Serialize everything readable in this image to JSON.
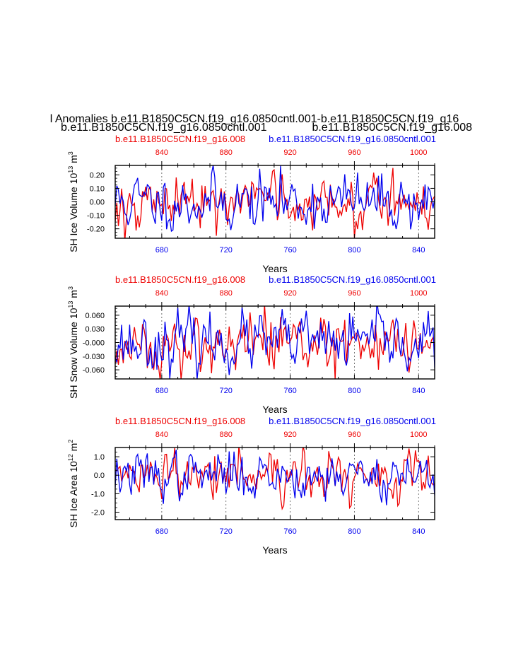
{
  "header": {
    "main_title": "l Anomalies b.e11.B1850C5CN.f19_g16.0850cntl.001-b.e11.B1850C5CN.f19_g16",
    "case_left": "b.e11.B1850C5CN.f19_g16.0850cntl.001",
    "case_right": "b.e11.B1850C5CN.f19_g16.008"
  },
  "colors": {
    "blue": "#0000ee",
    "red": "#ee0000",
    "black": "#000000"
  },
  "chart_data": [
    {
      "type": "line",
      "ylabel": "SH Ice Volume 10",
      "ylabel_exp": "13",
      "ylabel_unit": " m",
      "ylabel_unit_exp": "3",
      "xlabel": "Years",
      "top_left_label": "b.e11.B1850C5CN.f19_g16.008",
      "top_right_label": "b.e11.B1850C5CN.f19_g16.0850cntl.001",
      "ylim": [
        -0.27,
        0.27
      ],
      "yticks": [
        -0.2,
        -0.1,
        0.0,
        0.1,
        0.2
      ],
      "ytick_labels": [
        "-0.20",
        "-0.10",
        "0.00",
        "0.10",
        "0.20"
      ],
      "x_blue_range": [
        651,
        850
      ],
      "blue_ticks": [
        680,
        720,
        760,
        800,
        840
      ],
      "red_ticks": [
        840,
        880,
        920,
        960,
        1000
      ],
      "blue_amp": 0.1,
      "red_amp": 0.1,
      "seed": 11
    },
    {
      "type": "line",
      "ylabel": "SH Snow Volume 10",
      "ylabel_exp": "13",
      "ylabel_unit": " m",
      "ylabel_unit_exp": "3",
      "xlabel": "Years",
      "top_left_label": "b.e11.B1850C5CN.f19_g16.008",
      "top_right_label": "b.e11.B1850C5CN.f19_g16.0850cntl.001",
      "ylim": [
        -0.08,
        0.08
      ],
      "yticks": [
        -0.06,
        -0.03,
        0.0,
        0.03,
        0.06
      ],
      "ytick_labels": [
        "-0.060",
        "-0.030",
        "-0.000",
        "0.030",
        "0.060"
      ],
      "x_blue_range": [
        651,
        850
      ],
      "blue_ticks": [
        680,
        720,
        760,
        800,
        840
      ],
      "red_ticks": [
        840,
        880,
        920,
        960,
        1000
      ],
      "blue_amp": 0.03,
      "red_amp": 0.03,
      "seed": 23
    },
    {
      "type": "line",
      "ylabel": "SH Ice Area 10",
      "ylabel_exp": "12",
      "ylabel_unit": " m",
      "ylabel_unit_exp": "2",
      "xlabel": "Years",
      "top_left_label": "b.e11.B1850C5CN.f19_g16.008",
      "top_right_label": "b.e11.B1850C5CN.f19_g16.0850cntl.001",
      "ylim": [
        -2.4,
        1.5
      ],
      "yticks": [
        -2.0,
        -1.0,
        0.0,
        1.0
      ],
      "ytick_labels": [
        "-2.0",
        "-1.0",
        "0.0",
        "1.0"
      ],
      "x_blue_range": [
        651,
        850
      ],
      "blue_ticks": [
        680,
        720,
        760,
        800,
        840
      ],
      "red_ticks": [
        840,
        880,
        920,
        960,
        1000
      ],
      "blue_amp": 0.6,
      "red_amp": 0.6,
      "seed": 37
    }
  ]
}
